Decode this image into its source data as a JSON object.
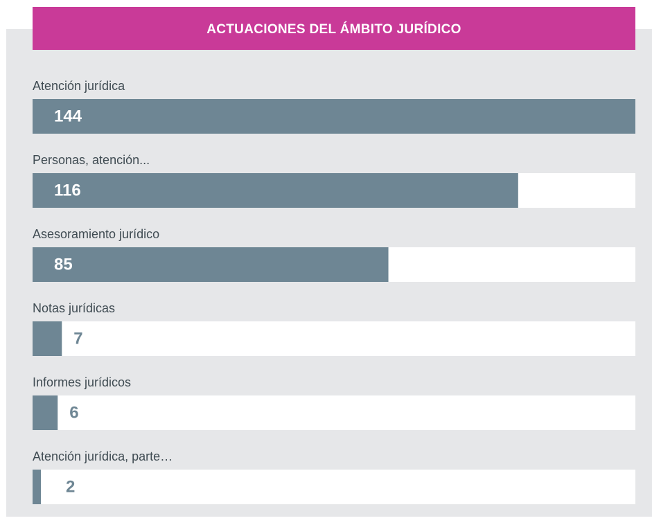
{
  "chart_data": {
    "type": "bar",
    "orientation": "horizontal",
    "title": "ACTUACIONES DEL ÁMBITO JURÍDICO",
    "categories": [
      "Atención jurídica",
      "Personas, atención...",
      "Asesoramiento jurídico",
      "Notas jurídicas",
      "Informes jurídicos",
      "Atención jurídica, parte…"
    ],
    "values": [
      144,
      116,
      85,
      7,
      6,
      2
    ],
    "color": "#6e8694",
    "xlim": [
      0,
      144
    ]
  }
}
